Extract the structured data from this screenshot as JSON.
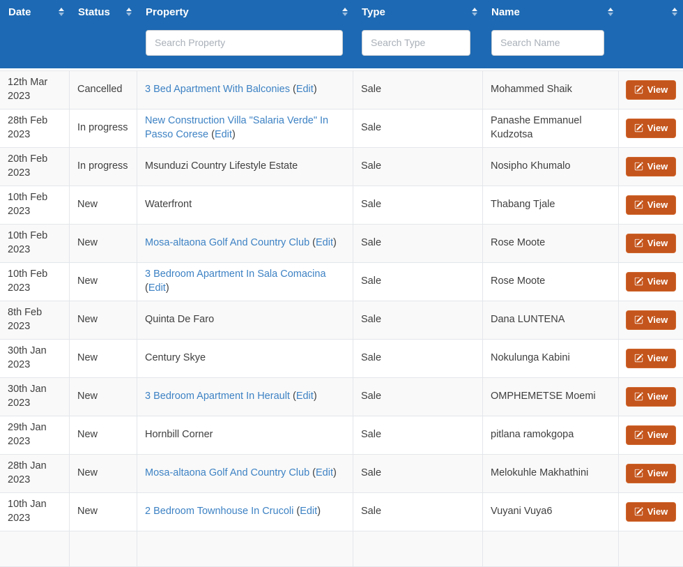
{
  "colors": {
    "header_bg": "#1d69b3",
    "link": "#3d82c4",
    "view_button_bg": "#c4551c",
    "row_stripe": "#f9f9f9"
  },
  "table": {
    "columns": [
      {
        "label": "Date"
      },
      {
        "label": "Status"
      },
      {
        "label": "Property",
        "search_placeholder": "Search Property"
      },
      {
        "label": "Type",
        "search_placeholder": "Search Type"
      },
      {
        "label": "Name",
        "search_placeholder": "Search Name"
      },
      {
        "label": ""
      }
    ],
    "labels": {
      "view": "View",
      "edit": "Edit"
    },
    "rows": [
      {
        "date": "12th Mar 2023",
        "status": "Cancelled",
        "property": "3 Bed Apartment With Balconies",
        "edit": true,
        "type": "Sale",
        "name": "Mohammed Shaik"
      },
      {
        "date": "28th Feb 2023",
        "status": "In progress",
        "property": "New Construction Villa \"Salaria Verde\" In Passo Corese",
        "edit": true,
        "type": "Sale",
        "name": "Panashe Emmanuel Kudzotsa"
      },
      {
        "date": "20th Feb 2023",
        "status": "In progress",
        "property": "Msunduzi Country Lifestyle Estate",
        "edit": false,
        "type": "Sale",
        "name": "Nosipho Khumalo"
      },
      {
        "date": "10th Feb 2023",
        "status": "New",
        "property": "Waterfront",
        "edit": false,
        "type": "Sale",
        "name": "Thabang Tjale"
      },
      {
        "date": "10th Feb 2023",
        "status": "New",
        "property": "Mosa-altaona Golf And Country Club",
        "edit": true,
        "type": "Sale",
        "name": "Rose Moote"
      },
      {
        "date": "10th Feb 2023",
        "status": "New",
        "property": "3 Bedroom Apartment In Sala Comacina",
        "edit": true,
        "type": "Sale",
        "name": "Rose Moote"
      },
      {
        "date": "8th Feb 2023",
        "status": "New",
        "property": "Quinta De Faro",
        "edit": false,
        "type": "Sale",
        "name": "Dana LUNTENA"
      },
      {
        "date": "30th Jan 2023",
        "status": "New",
        "property": "Century Skye",
        "edit": false,
        "type": "Sale",
        "name": "Nokulunga Kabini"
      },
      {
        "date": "30th Jan 2023",
        "status": "New",
        "property": "3 Bedroom Apartment In Herault",
        "edit": true,
        "type": "Sale",
        "name": "OMPHEMETSE Moemi"
      },
      {
        "date": "29th Jan 2023",
        "status": "New",
        "property": "Hornbill Corner",
        "edit": false,
        "type": "Sale",
        "name": "pitlana ramokgopa"
      },
      {
        "date": "28th Jan 2023",
        "status": "New",
        "property": "Mosa-altaona Golf And Country Club",
        "edit": true,
        "type": "Sale",
        "name": "Melokuhle Makhathini"
      },
      {
        "date": "10th Jan 2023",
        "status": "New",
        "property": "2 Bedroom Townhouse In Crucoli",
        "edit": true,
        "type": "Sale",
        "name": "Vuyani Vuya6"
      }
    ]
  }
}
